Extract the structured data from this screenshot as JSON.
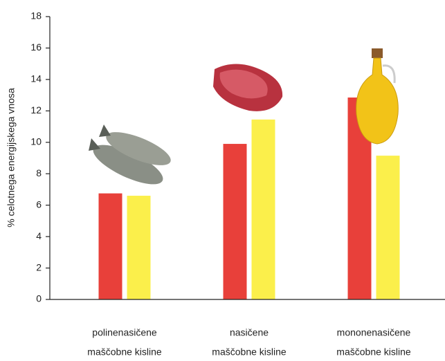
{
  "chart_data": {
    "type": "bar",
    "y_label": "% celotnega energijskega vnosa",
    "categories": [
      [
        "polinenasičene",
        "maščobne kisline"
      ],
      [
        "nasičene",
        "maščobne kisline"
      ],
      [
        "mononenasičene",
        "maščobne kisline"
      ]
    ],
    "series": [
      {
        "color": "#e8403a",
        "values": [
          6.75,
          9.9,
          12.85
        ]
      },
      {
        "color": "#fbef4b",
        "values": [
          6.6,
          11.45,
          9.15
        ]
      }
    ],
    "ylim": [
      0,
      18
    ],
    "yticks": [
      0,
      2,
      4,
      6,
      8,
      10,
      12,
      14,
      16,
      18
    ]
  }
}
